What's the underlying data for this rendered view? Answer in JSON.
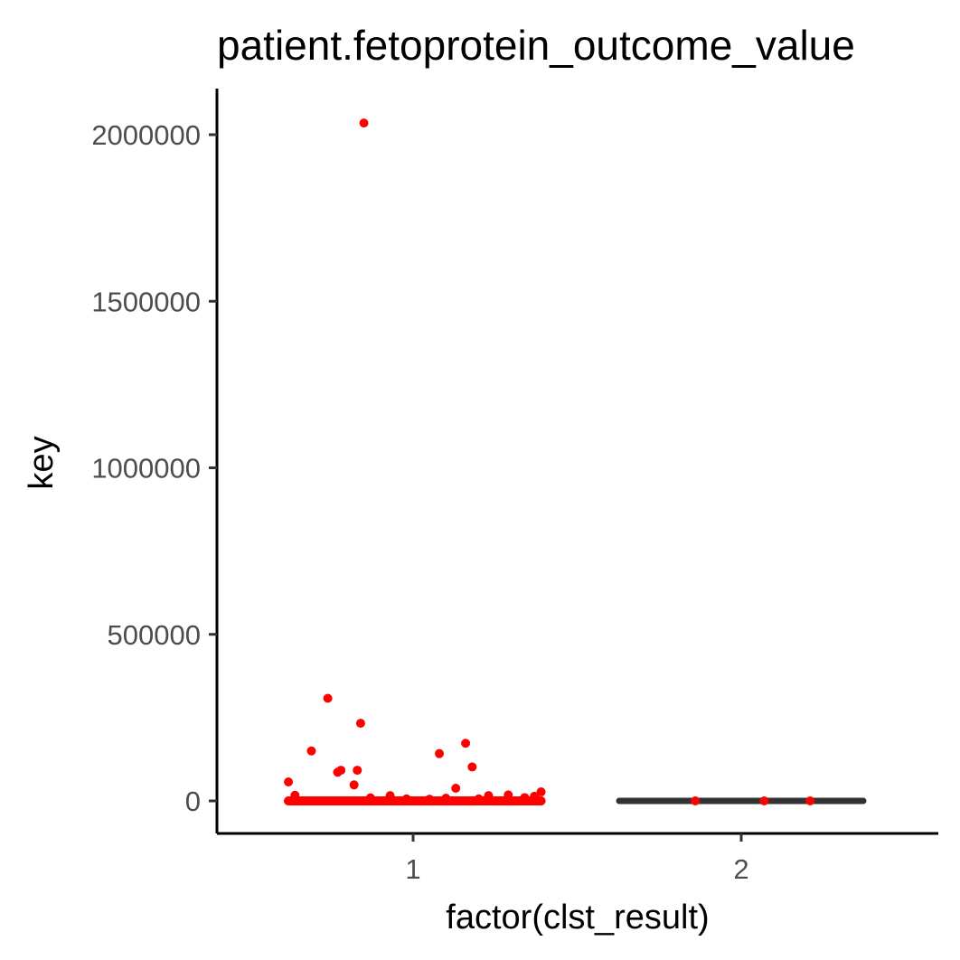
{
  "chart_data": {
    "type": "scatter",
    "title": "patient.fetoprotein_outcome_value",
    "xlabel": "factor(clst_result)",
    "ylabel": "key",
    "categories": [
      "1",
      "2"
    ],
    "y_ticks": [
      0,
      500000,
      1000000,
      1500000,
      2000000
    ],
    "y_tick_labels": [
      "0",
      "500000",
      "1000000",
      "1500000",
      "2000000"
    ],
    "ylim": [
      -100000,
      2140000
    ],
    "grid": false,
    "legend": "none",
    "point_color": "#ff0000",
    "boxplot_color": "#333333",
    "series": [
      {
        "category": "1",
        "points": [
          {
            "x": 0.85,
            "y": 2035000
          },
          {
            "x": 0.74,
            "y": 308000
          },
          {
            "x": 0.84,
            "y": 233000
          },
          {
            "x": 1.16,
            "y": 173000
          },
          {
            "x": 0.69,
            "y": 150000
          },
          {
            "x": 1.08,
            "y": 142000
          },
          {
            "x": 1.18,
            "y": 102000
          },
          {
            "x": 0.78,
            "y": 92000
          },
          {
            "x": 0.83,
            "y": 92000
          },
          {
            "x": 0.77,
            "y": 86000
          },
          {
            "x": 0.62,
            "y": 57000
          },
          {
            "x": 0.82,
            "y": 48000
          },
          {
            "x": 1.13,
            "y": 38000
          },
          {
            "x": 1.39,
            "y": 27000
          },
          {
            "x": 0.64,
            "y": 17000
          },
          {
            "x": 0.93,
            "y": 16000
          },
          {
            "x": 1.23,
            "y": 16000
          },
          {
            "x": 1.29,
            "y": 18000
          },
          {
            "x": 1.37,
            "y": 14000
          },
          {
            "x": 0.87,
            "y": 9000
          },
          {
            "x": 1.1,
            "y": 8000
          },
          {
            "x": 1.34,
            "y": 10000
          },
          {
            "x": 0.98,
            "y": 6000
          },
          {
            "x": 1.05,
            "y": 5000
          },
          {
            "x": 1.2,
            "y": 6000
          },
          {
            "x": 0.62,
            "y": 0
          },
          {
            "x": 0.65,
            "y": 0
          },
          {
            "x": 0.68,
            "y": 0
          },
          {
            "x": 0.71,
            "y": 0
          },
          {
            "x": 0.74,
            "y": 0
          },
          {
            "x": 0.77,
            "y": 0
          },
          {
            "x": 0.8,
            "y": 0
          },
          {
            "x": 0.83,
            "y": 0
          },
          {
            "x": 0.86,
            "y": 0
          },
          {
            "x": 0.89,
            "y": 0
          },
          {
            "x": 0.92,
            "y": 0
          },
          {
            "x": 0.95,
            "y": 0
          },
          {
            "x": 0.98,
            "y": 0
          },
          {
            "x": 1.01,
            "y": 0
          },
          {
            "x": 1.04,
            "y": 0
          },
          {
            "x": 1.07,
            "y": 0
          },
          {
            "x": 1.1,
            "y": 0
          },
          {
            "x": 1.13,
            "y": 0
          },
          {
            "x": 1.16,
            "y": 0
          },
          {
            "x": 1.19,
            "y": 0
          },
          {
            "x": 1.22,
            "y": 0
          },
          {
            "x": 1.25,
            "y": 0
          },
          {
            "x": 1.28,
            "y": 0
          },
          {
            "x": 1.31,
            "y": 0
          },
          {
            "x": 1.34,
            "y": 0
          },
          {
            "x": 1.37,
            "y": 0
          },
          {
            "x": 1.39,
            "y": 0
          }
        ]
      },
      {
        "category": "2",
        "boxplot": {
          "min": 0,
          "q1": 0,
          "median": 0,
          "q3": 0,
          "max": 0
        },
        "points": [
          {
            "x": 1.86,
            "y": 0
          },
          {
            "x": 2.07,
            "y": 0
          },
          {
            "x": 2.21,
            "y": 0
          }
        ]
      }
    ]
  }
}
